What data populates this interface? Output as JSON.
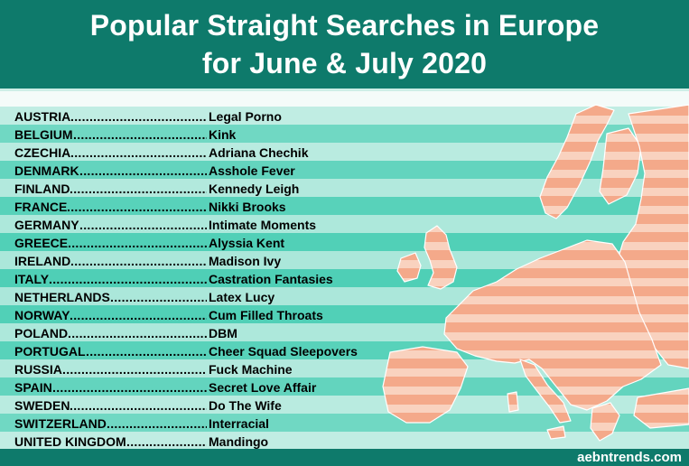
{
  "title_line_1": "Popular Straight Searches in Europe",
  "title_line_2": "for June & July 2020",
  "rows": [
    {
      "country": "AUSTRIA",
      "search": "Legal Porno"
    },
    {
      "country": "BELGIUM",
      "search": "Kink"
    },
    {
      "country": "CZECHIA",
      "search": "Adriana Chechik"
    },
    {
      "country": "DENMARK",
      "search": "Asshole Fever"
    },
    {
      "country": "FINLAND",
      "search": "Kennedy Leigh"
    },
    {
      "country": "FRANCE",
      "search": "Nikki Brooks"
    },
    {
      "country": "GERMANY",
      "search": "Intimate Moments"
    },
    {
      "country": "GREECE",
      "search": "Alyssia Kent"
    },
    {
      "country": "IRELAND",
      "search": "Madison Ivy"
    },
    {
      "country": "ITALY",
      "search": "Castration Fantasies"
    },
    {
      "country": "NETHERLANDS",
      "search": "Latex Lucy"
    },
    {
      "country": "NORWAY",
      "search": "Cum Filled Throats"
    },
    {
      "country": "POLAND",
      "search": "DBM"
    },
    {
      "country": "PORTUGAL",
      "search": "Cheer Squad Sleepovers"
    },
    {
      "country": "RUSSIA",
      "search": "Fuck Machine"
    },
    {
      "country": "SPAIN",
      "search": "Secret Love Affair"
    },
    {
      "country": "SWEDEN",
      "search": "Do The Wife"
    },
    {
      "country": "SWITZERLAND",
      "search": "Interracial"
    },
    {
      "country": "UNITED KINGDOM",
      "search": "Mandingo"
    }
  ],
  "footer_credit": "aebntrends.com",
  "colors": {
    "header_bg": "#0e7a6b",
    "map_fill": "#f4a98a",
    "map_stripe": "#f9d2bf",
    "stripe_light": "#dff5ef",
    "stripe_dark": "#3fcbb0"
  }
}
